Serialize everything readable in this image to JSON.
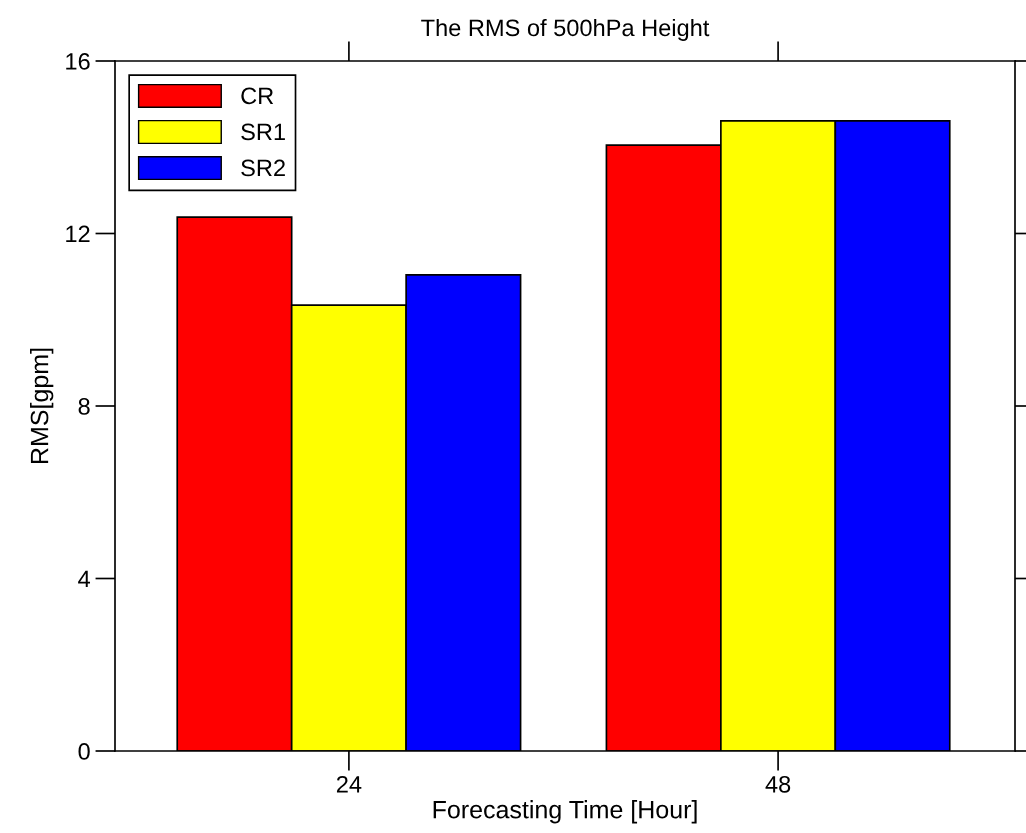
{
  "chart_data": {
    "type": "bar",
    "title": "The RMS of 500hPa Height",
    "xlabel": "Forecasting Time [Hour]",
    "ylabel": "RMS[gpm]",
    "categories": [
      "24",
      "48"
    ],
    "series": [
      {
        "name": "CR",
        "color": "#ff0000",
        "values": [
          12.38,
          14.05
        ]
      },
      {
        "name": "SR1",
        "color": "#ffff00",
        "values": [
          10.34,
          14.61
        ]
      },
      {
        "name": "SR2",
        "color": "#0000ff",
        "values": [
          11.04,
          14.61
        ]
      }
    ],
    "ylim": [
      0,
      16
    ],
    "yticks": [
      0,
      4,
      8,
      12,
      16
    ],
    "grid": false,
    "legend": "top left"
  }
}
